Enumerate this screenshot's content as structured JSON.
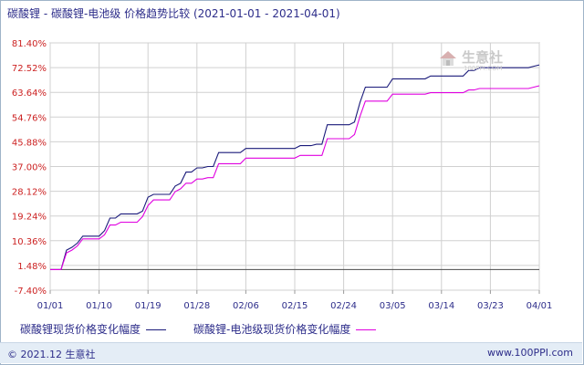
{
  "title": {
    "main": "碳酸锂 - 碳酸锂-电池级 价格趋势比较",
    "range": "(2021-01-01 - 2021-04-01)"
  },
  "watermark": {
    "text": "生意社",
    "sub": "100PPI.COM"
  },
  "legend": {
    "series1": "碳酸锂现货价格变化幅度",
    "series2": "碳酸锂-电池级现货价格变化幅度"
  },
  "footer": {
    "left": "© 2021.12 生意社",
    "right": "www.100PPI.com"
  },
  "colors": {
    "series1": "#1a1a7a",
    "series2": "#e000e0",
    "grid": "#d0d0d0",
    "axis_text": "#cc2222",
    "x_text": "#2d2d8a"
  },
  "chart_data": {
    "type": "line",
    "title": "碳酸锂 - 碳酸锂-电池级 价格趋势比较",
    "xlabel": "",
    "ylabel": "",
    "ylim": [
      -7.4,
      81.4
    ],
    "yticks": [
      "81.40%",
      "72.52%",
      "63.64%",
      "54.76%",
      "45.88%",
      "37.00%",
      "28.12%",
      "19.24%",
      "10.36%",
      "1.48%",
      "-7.40%"
    ],
    "ytick_values": [
      81.4,
      72.52,
      63.64,
      54.76,
      45.88,
      37.0,
      28.12,
      19.24,
      10.36,
      1.48,
      -7.4
    ],
    "x_ticks": [
      "01/01",
      "01/10",
      "01/19",
      "01/28",
      "02/06",
      "02/15",
      "02/24",
      "03/05",
      "03/14",
      "03/23",
      "04/01"
    ],
    "x_days": 90,
    "grid": true,
    "legend_position": "bottom",
    "series": [
      {
        "name": "碳酸锂现货价格变化幅度",
        "points": [
          [
            0,
            0
          ],
          [
            1,
            0
          ],
          [
            2,
            0
          ],
          [
            3,
            7
          ],
          [
            4,
            8
          ],
          [
            5,
            9.5
          ],
          [
            6,
            12
          ],
          [
            7,
            12
          ],
          [
            8,
            12
          ],
          [
            9,
            12
          ],
          [
            10,
            14
          ],
          [
            11,
            18.5
          ],
          [
            12,
            18.5
          ],
          [
            13,
            20
          ],
          [
            14,
            20
          ],
          [
            15,
            20
          ],
          [
            16,
            20
          ],
          [
            17,
            21
          ],
          [
            18,
            26
          ],
          [
            19,
            27
          ],
          [
            20,
            27
          ],
          [
            21,
            27
          ],
          [
            22,
            27
          ],
          [
            23,
            30
          ],
          [
            24,
            31
          ],
          [
            25,
            35
          ],
          [
            26,
            35
          ],
          [
            27,
            36.5
          ],
          [
            28,
            36.5
          ],
          [
            29,
            37
          ],
          [
            30,
            37
          ],
          [
            31,
            42
          ],
          [
            32,
            42
          ],
          [
            33,
            42
          ],
          [
            34,
            42
          ],
          [
            35,
            42
          ],
          [
            36,
            43.5
          ],
          [
            37,
            43.5
          ],
          [
            38,
            43.5
          ],
          [
            39,
            43.5
          ],
          [
            40,
            43.5
          ],
          [
            41,
            43.5
          ],
          [
            42,
            43.5
          ],
          [
            43,
            43.5
          ],
          [
            44,
            43.5
          ],
          [
            45,
            43.5
          ],
          [
            46,
            44.5
          ],
          [
            47,
            44.5
          ],
          [
            48,
            44.5
          ],
          [
            49,
            45
          ],
          [
            50,
            45
          ],
          [
            51,
            52
          ],
          [
            52,
            52
          ],
          [
            53,
            52
          ],
          [
            54,
            52
          ],
          [
            55,
            52
          ],
          [
            56,
            53
          ],
          [
            57,
            60
          ],
          [
            58,
            65.5
          ],
          [
            59,
            65.5
          ],
          [
            60,
            65.5
          ],
          [
            61,
            65.5
          ],
          [
            62,
            65.5
          ],
          [
            63,
            68.5
          ],
          [
            64,
            68.5
          ],
          [
            65,
            68.5
          ],
          [
            66,
            68.5
          ],
          [
            67,
            68.5
          ],
          [
            68,
            68.5
          ],
          [
            69,
            68.5
          ],
          [
            70,
            69.5
          ],
          [
            71,
            69.5
          ],
          [
            72,
            69.5
          ],
          [
            73,
            69.5
          ],
          [
            74,
            69.5
          ],
          [
            75,
            69.5
          ],
          [
            76,
            69.5
          ],
          [
            77,
            71.5
          ],
          [
            78,
            71.5
          ],
          [
            79,
            72.5
          ],
          [
            80,
            72.5
          ],
          [
            81,
            72.5
          ],
          [
            82,
            72.5
          ],
          [
            83,
            72.5
          ],
          [
            84,
            72.5
          ],
          [
            85,
            72.5
          ],
          [
            86,
            72.5
          ],
          [
            87,
            72.5
          ],
          [
            88,
            72.5
          ],
          [
            89,
            73
          ],
          [
            90,
            73.5
          ]
        ]
      },
      {
        "name": "碳酸锂-电池级现货价格变化幅度",
        "points": [
          [
            0,
            0
          ],
          [
            1,
            0
          ],
          [
            2,
            0
          ],
          [
            3,
            6
          ],
          [
            4,
            7
          ],
          [
            5,
            8.5
          ],
          [
            6,
            11
          ],
          [
            7,
            11
          ],
          [
            8,
            11
          ],
          [
            9,
            11
          ],
          [
            10,
            12.5
          ],
          [
            11,
            16
          ],
          [
            12,
            16
          ],
          [
            13,
            17
          ],
          [
            14,
            17
          ],
          [
            15,
            17
          ],
          [
            16,
            17
          ],
          [
            17,
            19
          ],
          [
            18,
            23
          ],
          [
            19,
            25
          ],
          [
            20,
            25
          ],
          [
            21,
            25
          ],
          [
            22,
            25
          ],
          [
            23,
            28
          ],
          [
            24,
            29
          ],
          [
            25,
            31
          ],
          [
            26,
            31
          ],
          [
            27,
            32.5
          ],
          [
            28,
            32.5
          ],
          [
            29,
            33
          ],
          [
            30,
            33
          ],
          [
            31,
            38
          ],
          [
            32,
            38
          ],
          [
            33,
            38
          ],
          [
            34,
            38
          ],
          [
            35,
            38
          ],
          [
            36,
            40
          ],
          [
            37,
            40
          ],
          [
            38,
            40
          ],
          [
            39,
            40
          ],
          [
            40,
            40
          ],
          [
            41,
            40
          ],
          [
            42,
            40
          ],
          [
            43,
            40
          ],
          [
            44,
            40
          ],
          [
            45,
            40
          ],
          [
            46,
            41
          ],
          [
            47,
            41
          ],
          [
            48,
            41
          ],
          [
            49,
            41
          ],
          [
            50,
            41
          ],
          [
            51,
            47
          ],
          [
            52,
            47
          ],
          [
            53,
            47
          ],
          [
            54,
            47
          ],
          [
            55,
            47
          ],
          [
            56,
            48.5
          ],
          [
            57,
            55
          ],
          [
            58,
            60.5
          ],
          [
            59,
            60.5
          ],
          [
            60,
            60.5
          ],
          [
            61,
            60.5
          ],
          [
            62,
            60.5
          ],
          [
            63,
            63
          ],
          [
            64,
            63
          ],
          [
            65,
            63
          ],
          [
            66,
            63
          ],
          [
            67,
            63
          ],
          [
            68,
            63
          ],
          [
            69,
            63
          ],
          [
            70,
            63.5
          ],
          [
            71,
            63.5
          ],
          [
            72,
            63.5
          ],
          [
            73,
            63.5
          ],
          [
            74,
            63.5
          ],
          [
            75,
            63.5
          ],
          [
            76,
            63.5
          ],
          [
            77,
            64.5
          ],
          [
            78,
            64.5
          ],
          [
            79,
            65
          ],
          [
            80,
            65
          ],
          [
            81,
            65
          ],
          [
            82,
            65
          ],
          [
            83,
            65
          ],
          [
            84,
            65
          ],
          [
            85,
            65
          ],
          [
            86,
            65
          ],
          [
            87,
            65
          ],
          [
            88,
            65
          ],
          [
            89,
            65.5
          ],
          [
            90,
            66
          ]
        ]
      }
    ]
  }
}
